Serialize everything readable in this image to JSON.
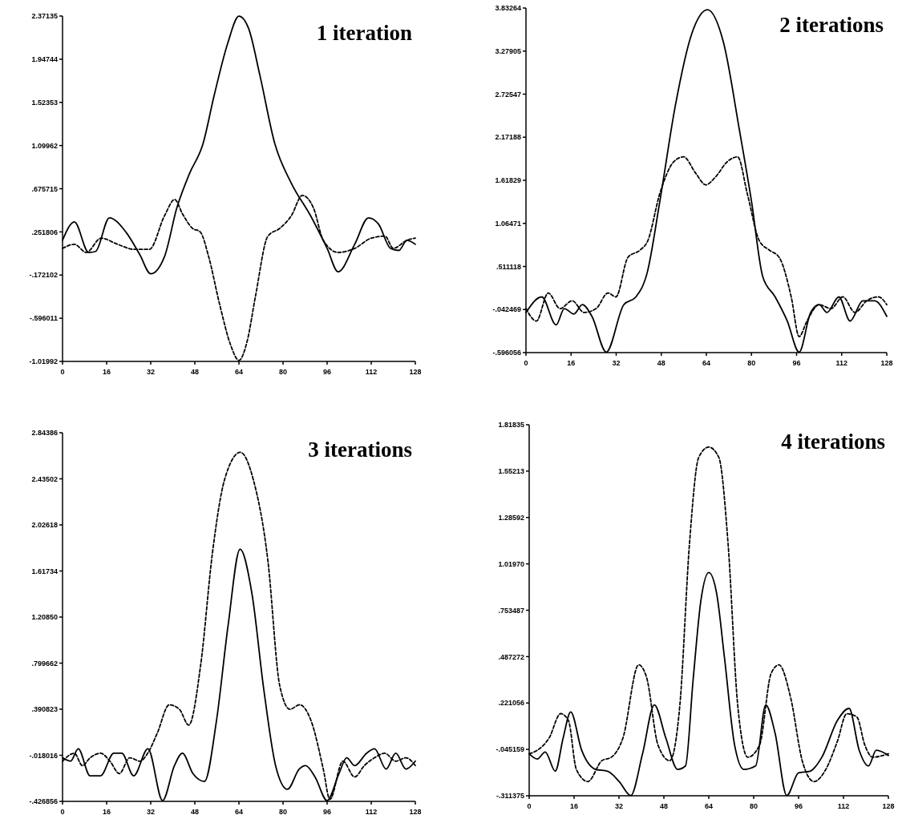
{
  "chart_data": [
    {
      "type": "line",
      "title": "1 iteration",
      "xlim": [
        0,
        128
      ],
      "xticks": [
        0,
        16,
        32,
        48,
        64,
        80,
        96,
        112,
        128
      ],
      "ylim": [
        -1.01992,
        2.37135
      ],
      "yticks": [
        {
          "value": -1.01992,
          "label": "-1.01992"
        },
        {
          "value": -0.596011,
          "label": "-.596011"
        },
        {
          "value": -0.172102,
          "label": "-.172102"
        },
        {
          "value": 0.251806,
          "label": ".251806"
        },
        {
          "value": 0.675715,
          "label": ".675715"
        },
        1.09962,
        1.52353,
        1.94744,
        2.37135
      ],
      "series": [
        {
          "color": "#000000",
          "line_style": "solid",
          "x": [
            0,
            4.3,
            9.5,
            12,
            17,
            23,
            28,
            32,
            37,
            41.5,
            46,
            51,
            55,
            60,
            64,
            67.5,
            71.6,
            77,
            83,
            90,
            96,
            100,
            106,
            111,
            114.6,
            119,
            122,
            125,
            128
          ],
          "values": [
            0.17,
            0.35,
            0.05,
            0.06,
            0.39,
            0.25,
            0.03,
            -0.16,
            0.01,
            0.49,
            0.82,
            1.12,
            1.59,
            2.11,
            2.37,
            2.25,
            1.79,
            1.12,
            0.73,
            0.41,
            0.09,
            -0.14,
            0.13,
            0.39,
            0.33,
            0.09,
            0.07,
            0.17,
            0.13
          ]
        },
        {
          "color": "#000000",
          "line_style": "dashed",
          "x": [
            0,
            4.3,
            8.6,
            14,
            20,
            26,
            31.5,
            37,
            40.7,
            43.5,
            47,
            50,
            53,
            57,
            61,
            64,
            67,
            70,
            74.5,
            79,
            83,
            87,
            91,
            94.6,
            100,
            106,
            112,
            117,
            120,
            125,
            128
          ],
          "values": [
            0.09,
            0.13,
            0.05,
            0.19,
            0.13,
            0.08,
            0.08,
            0.41,
            0.57,
            0.43,
            0.29,
            0.25,
            0.01,
            -0.46,
            -0.86,
            -1.01,
            -0.82,
            -0.38,
            0.21,
            0.29,
            0.41,
            0.61,
            0.49,
            0.17,
            0.05,
            0.09,
            0.19,
            0.21,
            0.09,
            0.17,
            0.19
          ]
        }
      ]
    },
    {
      "type": "line",
      "title": "2 iterations",
      "xlim": [
        0,
        128
      ],
      "xticks": [
        0,
        16,
        32,
        48,
        64,
        80,
        96,
        112,
        128
      ],
      "ylim": [
        -0.596056,
        3.83264
      ],
      "yticks": [
        {
          "value": -0.596056,
          "label": "-.596056"
        },
        {
          "value": -0.042469,
          "label": "-.042469"
        },
        {
          "value": 0.511118,
          "label": ".511118"
        },
        1.06471,
        1.61829,
        2.17188,
        2.72547,
        3.27905,
        3.83264
      ],
      "series": [
        {
          "color": "#000000",
          "line_style": "solid",
          "x": [
            0,
            5.6,
            10.7,
            13.6,
            17,
            20,
            23.4,
            28.5,
            34.7,
            39,
            43,
            47.5,
            53,
            58.8,
            64.4,
            70,
            75.7,
            80,
            84,
            88.4,
            92.7,
            96.9,
            101,
            104,
            106.8,
            111,
            115,
            119.5,
            123.7,
            128
          ],
          "values": [
            -0.08,
            0.12,
            -0.24,
            -0.03,
            -0.1,
            0.02,
            -0.13,
            -0.59,
            0.02,
            0.12,
            0.43,
            1.35,
            2.58,
            3.5,
            3.81,
            3.4,
            2.27,
            1.35,
            0.38,
            0.12,
            -0.19,
            -0.59,
            -0.08,
            0.02,
            -0.08,
            0.12,
            -0.19,
            0.07,
            0.07,
            -0.13
          ]
        },
        {
          "color": "#000000",
          "line_style": "dashed",
          "x": [
            0,
            3.7,
            7.9,
            12.1,
            16.4,
            20.6,
            24.9,
            29.1,
            31.9,
            36.2,
            40.4,
            43.2,
            47.5,
            52.5,
            55.9,
            60.2,
            63.8,
            67.2,
            71.5,
            75.1,
            78.5,
            82.8,
            86.4,
            89.8,
            94.1,
            96.9,
            99.7,
            104,
            108.2,
            112.4,
            116.7,
            120.9,
            125.1,
            128
          ],
          "values": [
            -0.03,
            -0.19,
            0.17,
            -0.03,
            0.07,
            -0.08,
            -0.03,
            0.17,
            0.12,
            0.63,
            0.72,
            0.84,
            1.45,
            1.86,
            1.92,
            1.71,
            1.56,
            1.66,
            1.86,
            1.92,
            1.45,
            0.84,
            0.72,
            0.63,
            0.12,
            -0.39,
            -0.19,
            0.02,
            -0.03,
            0.12,
            -0.08,
            0.07,
            0.12,
            0.02
          ]
        }
      ]
    },
    {
      "type": "line",
      "title": "3 iterations",
      "xlim": [
        0,
        128
      ],
      "xticks": [
        0,
        16,
        32,
        48,
        64,
        80,
        96,
        112,
        128
      ],
      "ylim": [
        -0.426856,
        2.84386
      ],
      "yticks": [
        {
          "value": -0.426856,
          "label": "-.426856"
        },
        {
          "value": -0.018016,
          "label": "-.018016"
        },
        {
          "value": 0.390823,
          "label": ".390823"
        },
        {
          "value": 0.799662,
          "label": ".799662"
        },
        {
          "value": 1.2085,
          "label": "1.20850"
        },
        1.61734,
        2.02618,
        2.43502,
        2.84386
      ],
      "series": [
        {
          "color": "#000000",
          "line_style": "solid",
          "x": [
            0,
            2.9,
            5.7,
            10,
            13.8,
            18.6,
            21.5,
            25.8,
            31,
            36.3,
            40.6,
            43.5,
            47.3,
            51.5,
            55.8,
            60.1,
            64.4,
            68.7,
            73,
            77.3,
            81.6,
            85.9,
            88.2,
            91.6,
            96,
            100.3,
            103.1,
            106,
            110.3,
            113.2,
            117.4,
            120.9,
            124.6,
            128
          ],
          "values": [
            -0.04,
            -0.07,
            0.04,
            -0.2,
            -0.2,
            0,
            0,
            -0.2,
            0.04,
            -0.42,
            -0.11,
            0,
            -0.18,
            -0.25,
            0.28,
            1.14,
            1.81,
            1.42,
            0.57,
            -0.11,
            -0.32,
            -0.14,
            -0.11,
            -0.21,
            -0.42,
            -0.18,
            -0.04,
            -0.11,
            0,
            0.04,
            -0.14,
            0,
            -0.14,
            -0.07
          ]
        },
        {
          "color": "#000000",
          "line_style": "dashed",
          "x": [
            0,
            4.3,
            7.2,
            10,
            13.8,
            17.2,
            20.6,
            24.4,
            28.1,
            30.9,
            34.4,
            38.7,
            42.4,
            45.8,
            50.1,
            54.4,
            58.7,
            64.5,
            69.3,
            74.5,
            78.8,
            82.5,
            86,
            90.3,
            94.6,
            97,
            101.7,
            106,
            109.5,
            113.2,
            116.9,
            120.9,
            124.6,
            128
          ],
          "values": [
            -0.07,
            0,
            -0.11,
            -0.04,
            0,
            -0.07,
            -0.18,
            -0.04,
            -0.07,
            0,
            0.18,
            0.43,
            0.39,
            0.25,
            0.78,
            1.78,
            2.42,
            2.67,
            2.42,
            1.71,
            0.6,
            0.39,
            0.43,
            0.28,
            -0.14,
            -0.41,
            -0.07,
            -0.21,
            -0.11,
            -0.04,
            0,
            -0.07,
            -0.04,
            -0.11
          ]
        }
      ]
    },
    {
      "type": "line",
      "title": "4 iterations",
      "xlim": [
        0,
        128
      ],
      "xticks": [
        0,
        16,
        32,
        48,
        64,
        80,
        96,
        112,
        128
      ],
      "ylim": [
        -0.311375,
        1.81835
      ],
      "yticks": [
        {
          "value": -0.311375,
          "label": "-.311375"
        },
        {
          "value": -0.045159,
          "label": "-.045159"
        },
        {
          "value": 0.221056,
          "label": ".221056"
        },
        {
          "value": 0.487272,
          "label": ".487272"
        },
        {
          "value": 0.753487,
          "label": ".753487"
        },
        {
          "value": 1.0197,
          "label": "1.01970"
        },
        1.28592,
        1.55213,
        1.81835
      ],
      "series": [
        {
          "color": "#000000",
          "line_style": "solid",
          "x": [
            0,
            2.9,
            5.7,
            9.3,
            12.1,
            14.8,
            18.7,
            23.7,
            27.9,
            32.1,
            36.2,
            40.4,
            44.6,
            48.7,
            52.9,
            55.7,
            58.4,
            61.2,
            64,
            66.8,
            69.6,
            73.2,
            76.5,
            80.7,
            84.3,
            87.6,
            91.8,
            96,
            100.1,
            104.3,
            109.8,
            114,
            117.6,
            120.9,
            123.7,
            128
          ],
          "values": [
            -0.07,
            -0.1,
            -0.06,
            -0.17,
            0.02,
            0.17,
            -0.05,
            -0.16,
            -0.17,
            -0.23,
            -0.31,
            -0.07,
            0.21,
            0.02,
            -0.16,
            -0.14,
            0.35,
            0.81,
            0.97,
            0.85,
            0.48,
            -0.02,
            -0.16,
            -0.14,
            0.21,
            0.05,
            -0.31,
            -0.18,
            -0.17,
            -0.09,
            0.12,
            0.19,
            -0.05,
            -0.14,
            -0.05,
            -0.08
          ]
        },
        {
          "color": "#000000",
          "line_style": "dashed",
          "x": [
            0,
            2.9,
            7.1,
            11.2,
            14,
            16.8,
            20.9,
            25.9,
            29.3,
            33.4,
            39,
            41.8,
            45.9,
            50.1,
            53.7,
            57.1,
            60.4,
            64,
            67.6,
            70.9,
            74.3,
            77.9,
            82.1,
            86.2,
            89,
            93.2,
            97.3,
            101.5,
            105.7,
            109.8,
            113.2,
            116.8,
            119.6,
            122.4,
            128
          ],
          "values": [
            -0.07,
            -0.05,
            0.02,
            0.16,
            0.12,
            -0.16,
            -0.23,
            -0.11,
            -0.09,
            0.02,
            0.44,
            0.37,
            -0.02,
            -0.11,
            0.21,
            1.13,
            1.63,
            1.69,
            1.63,
            1.13,
            0.21,
            -0.09,
            -0.02,
            0.39,
            0.44,
            0.25,
            -0.11,
            -0.23,
            -0.16,
            0,
            0.16,
            0.14,
            -0.02,
            -0.09,
            -0.07
          ]
        }
      ]
    }
  ]
}
